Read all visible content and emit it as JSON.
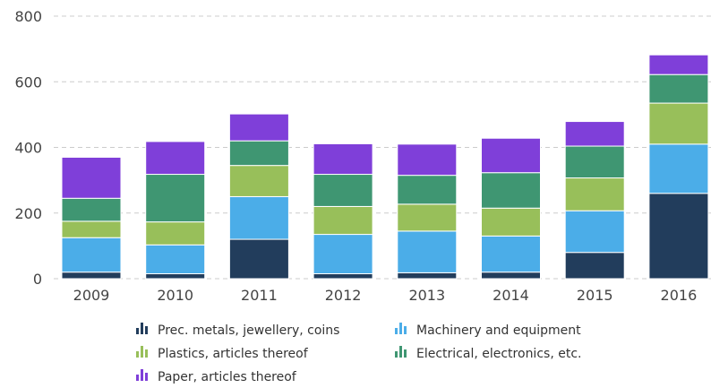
{
  "chart_data": {
    "type": "bar",
    "stacked": true,
    "categories": [
      "2009",
      "2010",
      "2011",
      "2012",
      "2013",
      "2014",
      "2015",
      "2016"
    ],
    "series": [
      {
        "name": "Prec. metals, jewellery, coins",
        "color": "#223d5c",
        "values": [
          20,
          15,
          120,
          15,
          18,
          20,
          80,
          260
        ]
      },
      {
        "name": "Machinery and equipment",
        "color": "#4bade8",
        "values": [
          105,
          88,
          130,
          120,
          127,
          110,
          127,
          150
        ]
      },
      {
        "name": "Plastics, articles thereof",
        "color": "#98bf5a",
        "values": [
          50,
          70,
          95,
          85,
          82,
          85,
          100,
          125
        ]
      },
      {
        "name": "Electrical, electronics, etc.",
        "color": "#3f9672",
        "values": [
          70,
          145,
          75,
          98,
          88,
          108,
          97,
          87
        ]
      },
      {
        "name": "Paper, articles thereof",
        "color": "#7f3fd9",
        "values": [
          125,
          100,
          82,
          93,
          95,
          105,
          75,
          60
        ]
      }
    ],
    "y_ticks": [
      0,
      200,
      400,
      600,
      800
    ],
    "ylim": [
      0,
      800
    ],
    "grid": true,
    "legend_position": "bottom"
  }
}
